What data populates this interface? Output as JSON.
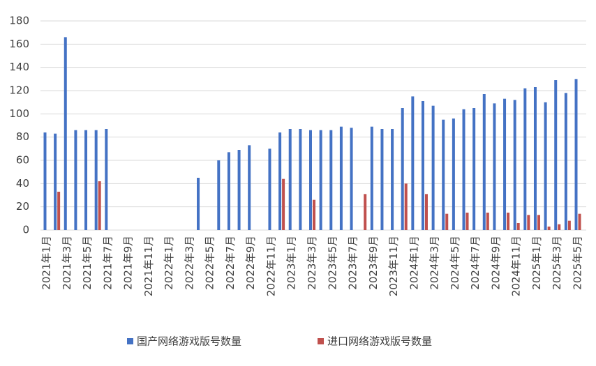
{
  "chart_data": {
    "type": "bar",
    "categories": [
      "2021年1月",
      null,
      "2021年3月",
      null,
      "2021年5月",
      null,
      "2021年7月",
      null,
      "2021年9月",
      null,
      "2021年11月",
      null,
      "2022年1月",
      null,
      "2022年3月",
      null,
      "2022年5月",
      null,
      "2022年7月",
      null,
      "2022年9月",
      null,
      "2022年11月",
      null,
      "2023年1月",
      null,
      "2023年3月",
      null,
      "2023年5月",
      null,
      "2023年7月",
      null,
      "2023年9月",
      null,
      "2023年11月",
      null,
      "2024年1月",
      null,
      "2024年3月",
      null,
      "2024年5月",
      null,
      "2024年7月",
      null,
      "2024年9月",
      null,
      "2024年11月",
      null,
      "2025年1月",
      null,
      "2025年3月",
      null,
      "2025年5月"
    ],
    "series": [
      {
        "name": "国产网络游戏版号数量",
        "color": "#4472c4",
        "values": [
          84,
          83,
          166,
          86,
          86,
          86,
          87,
          null,
          null,
          null,
          null,
          null,
          null,
          null,
          null,
          45,
          null,
          60,
          67,
          69,
          73,
          null,
          70,
          84,
          87,
          87,
          86,
          86,
          86,
          89,
          88,
          null,
          89,
          87,
          87,
          105,
          115,
          111,
          107,
          95,
          96,
          104,
          105,
          117,
          109,
          113,
          112,
          122,
          123,
          110,
          129,
          118,
          130
        ]
      },
      {
        "name": "进口网络游戏版号数量",
        "color": "#c0504d",
        "values": [
          null,
          33,
          null,
          null,
          null,
          42,
          null,
          null,
          null,
          null,
          null,
          null,
          null,
          null,
          null,
          null,
          null,
          null,
          null,
          null,
          null,
          null,
          null,
          44,
          null,
          null,
          26,
          null,
          null,
          null,
          null,
          31,
          null,
          null,
          null,
          40,
          null,
          31,
          null,
          14,
          null,
          15,
          null,
          15,
          null,
          15,
          6,
          13,
          13,
          3,
          5,
          8,
          14
        ]
      }
    ],
    "ylim": [
      0,
      180
    ],
    "yticks": [
      0,
      20,
      40,
      60,
      80,
      100,
      120,
      140,
      160,
      180
    ],
    "grid": true,
    "legend": "bottom"
  }
}
